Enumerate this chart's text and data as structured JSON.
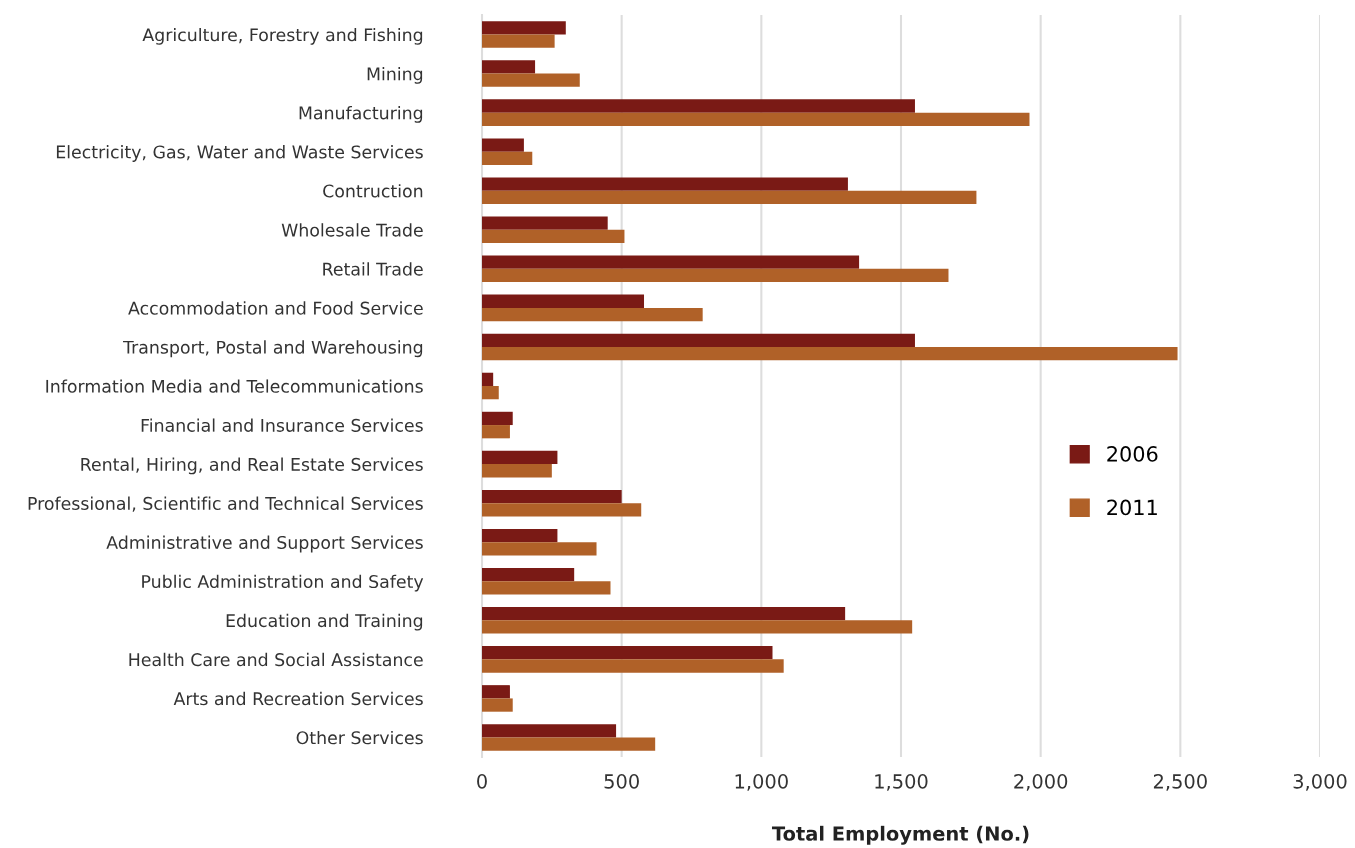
{
  "chart_data": {
    "type": "bar",
    "orientation": "horizontal",
    "xlabel": "Total Employment (No.)",
    "categories": [
      "Agriculture, Forestry and Fishing",
      "Mining",
      "Manufacturing",
      "Electricity, Gas, Water and Waste Services",
      "Contruction",
      "Wholesale Trade",
      "Retail Trade",
      "Accommodation and Food Service",
      "Transport, Postal and Warehousing",
      "Information Media and Telecommunications",
      "Financial and Insurance Services",
      "Rental, Hiring, and Real Estate Services",
      "Professional, Scientific and Technical Services",
      "Administrative and Support Services",
      "Public Administration and Safety",
      "Education and Training",
      "Health Care and Social Assistance",
      "Arts and Recreation Services",
      "Other Services"
    ],
    "series": [
      {
        "name": "2006",
        "color": "#7a1a15",
        "values": [
          300,
          190,
          1550,
          150,
          1310,
          450,
          1350,
          580,
          1550,
          40,
          110,
          270,
          500,
          270,
          330,
          1300,
          1040,
          100,
          480
        ]
      },
      {
        "name": "2011",
        "color": "#b06128",
        "values": [
          260,
          350,
          1960,
          180,
          1770,
          510,
          1670,
          790,
          2490,
          60,
          100,
          250,
          570,
          410,
          460,
          1540,
          1080,
          110,
          620
        ]
      }
    ],
    "xlim": [
      0,
      3000
    ],
    "xticks": [
      {
        "value": 0,
        "label": "0"
      },
      {
        "value": 500,
        "label": "500"
      },
      {
        "value": 1000,
        "label": "1,000"
      },
      {
        "value": 1500,
        "label": "1,500"
      },
      {
        "value": 2000,
        "label": "2,000"
      },
      {
        "value": 2500,
        "label": "2,500"
      },
      {
        "value": 3000,
        "label": "3,000"
      }
    ],
    "grid": "x",
    "legend": "center right"
  }
}
